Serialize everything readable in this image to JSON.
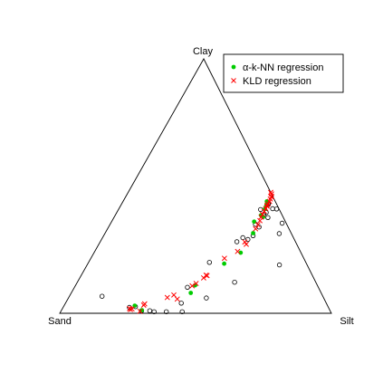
{
  "chart_data": {
    "type": "ternary-scatter",
    "vertex_labels": {
      "top": "Clay",
      "left": "Sand",
      "right": "Silt"
    },
    "legend": {
      "placement": "top-right",
      "entries": [
        {
          "label": "α-k-NN regression",
          "marker": "filled-circle",
          "color": "#00cc00"
        },
        {
          "label": "KLD regression",
          "marker": "x",
          "color": "#ff0000"
        }
      ]
    },
    "colors": {
      "observed": "#000000",
      "knn": "#00cc00",
      "kld": "#ff0000"
    },
    "components_order": [
      "clay",
      "sand",
      "silt"
    ],
    "series": [
      {
        "id": "observed",
        "marker": "open-circle",
        "points": [
          [
            0.067,
            0.813,
            0.12
          ],
          [
            0.01,
            0.694,
            0.296
          ],
          [
            0.006,
            0.605,
            0.389
          ],
          [
            0.01,
            0.664,
            0.326
          ],
          [
            0.006,
            0.547,
            0.448
          ],
          [
            0.04,
            0.534,
            0.426
          ],
          [
            0.006,
            0.65,
            0.344
          ],
          [
            0.026,
            0.709,
            0.265
          ],
          [
            0.023,
            0.733,
            0.244
          ],
          [
            0.2,
            0.355,
            0.445
          ],
          [
            0.122,
            0.299,
            0.579
          ],
          [
            0.06,
            0.432,
            0.508
          ],
          [
            0.102,
            0.482,
            0.416
          ],
          [
            0.29,
            0.171,
            0.539
          ],
          [
            0.281,
            0.216,
            0.503
          ],
          [
            0.305,
            0.145,
            0.55
          ],
          [
            0.297,
            0.186,
            0.516
          ],
          [
            0.35,
            0.115,
            0.535
          ],
          [
            0.339,
            0.107,
            0.554
          ],
          [
            0.411,
            0.023,
            0.566
          ],
          [
            0.41,
            0.009,
            0.581
          ],
          [
            0.389,
            0.066,
            0.545
          ],
          [
            0.354,
            0.015,
            0.631
          ],
          [
            0.376,
            0.057,
            0.567
          ],
          [
            0.429,
            0.03,
            0.541
          ],
          [
            0.433,
            0.028,
            0.54
          ],
          [
            0.408,
            0.069,
            0.523
          ],
          [
            0.396,
            0.054,
            0.55
          ],
          [
            0.313,
            0.045,
            0.642
          ],
          [
            0.19,
            0.102,
            0.708
          ]
        ]
      },
      {
        "id": "knn",
        "label": "α-k-NN regression",
        "marker": "filled-circle",
        "points": [
          [
            0.012,
            0.692,
            0.296
          ],
          [
            0.03,
            0.71,
            0.26
          ],
          [
            0.08,
            0.48,
            0.44
          ],
          [
            0.11,
            0.45,
            0.44
          ],
          [
            0.195,
            0.303,
            0.502
          ],
          [
            0.238,
            0.222,
            0.54
          ],
          [
            0.315,
            0.14,
            0.545
          ],
          [
            0.36,
            0.115,
            0.525
          ],
          [
            0.379,
            0.073,
            0.548
          ],
          [
            0.41,
            0.052,
            0.538
          ],
          [
            0.424,
            0.04,
            0.536
          ],
          [
            0.44,
            0.031,
            0.529
          ],
          [
            0.385,
            0.078,
            0.537
          ]
        ]
      },
      {
        "id": "kld",
        "label": "KLD regression",
        "marker": "x",
        "points": [
          [
            0.019,
            0.734,
            0.247
          ],
          [
            0.017,
            0.726,
            0.257
          ],
          [
            0.015,
            0.733,
            0.252
          ],
          [
            0.032,
            0.676,
            0.292
          ],
          [
            0.008,
            0.701,
            0.291
          ],
          [
            0.037,
            0.67,
            0.293
          ],
          [
            0.062,
            0.575,
            0.363
          ],
          [
            0.072,
            0.546,
            0.382
          ],
          [
            0.056,
            0.541,
            0.403
          ],
          [
            0.108,
            0.462,
            0.43
          ],
          [
            0.117,
            0.443,
            0.44
          ],
          [
            0.139,
            0.405,
            0.456
          ],
          [
            0.15,
            0.391,
            0.459
          ],
          [
            0.148,
            0.388,
            0.464
          ],
          [
            0.216,
            0.292,
            0.492
          ],
          [
            0.243,
            0.231,
            0.526
          ],
          [
            0.271,
            0.186,
            0.543
          ],
          [
            0.28,
            0.187,
            0.533
          ],
          [
            0.332,
            0.123,
            0.545
          ],
          [
            0.348,
            0.107,
            0.545
          ],
          [
            0.364,
            0.092,
            0.544
          ],
          [
            0.378,
            0.081,
            0.541
          ],
          [
            0.389,
            0.071,
            0.54
          ],
          [
            0.401,
            0.059,
            0.54
          ],
          [
            0.412,
            0.048,
            0.54
          ],
          [
            0.421,
            0.039,
            0.54
          ],
          [
            0.431,
            0.03,
            0.539
          ],
          [
            0.44,
            0.021,
            0.539
          ],
          [
            0.449,
            0.014,
            0.537
          ],
          [
            0.459,
            0.004,
            0.537
          ],
          [
            0.469,
            0.0,
            0.531
          ],
          [
            0.475,
            0.0,
            0.525
          ],
          [
            0.458,
            0.006,
            0.536
          ],
          [
            0.425,
            0.037,
            0.538
          ]
        ]
      }
    ]
  }
}
